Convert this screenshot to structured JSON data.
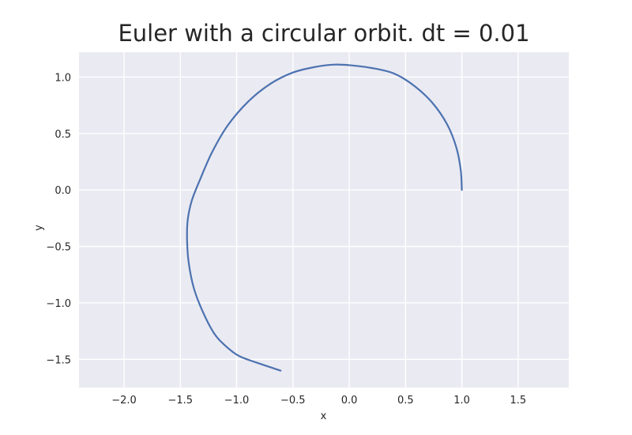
{
  "chart_data": {
    "type": "line",
    "title": "Euler with a circular orbit. dt = 0.01",
    "xlabel": "x",
    "ylabel": "y",
    "xlim": [
      -2.4,
      1.95
    ],
    "ylim": [
      -1.75,
      1.22
    ],
    "xticks": [
      -2.0,
      -1.5,
      -1.0,
      -0.5,
      0.0,
      0.5,
      1.0,
      1.5
    ],
    "xtick_labels": [
      "−2.0",
      "−1.5",
      "−1.0",
      "−0.5",
      "0.0",
      "0.5",
      "1.0",
      "1.5"
    ],
    "yticks": [
      -1.5,
      -1.0,
      -0.5,
      0.0,
      0.5,
      1.0
    ],
    "ytick_labels": [
      "−1.5",
      "−1.0",
      "−0.5",
      "0.0",
      "0.5",
      "1.0"
    ],
    "grid": true,
    "background_color": "#EAEAF2",
    "grid_color": "#FFFFFF",
    "series": [
      {
        "color": "#4C72B0",
        "x": [
          1.0,
          0.99,
          0.95,
          0.87,
          0.74,
          0.58,
          0.4,
          0.2,
          0.0,
          -0.13,
          -0.3,
          -0.5,
          -0.7,
          -0.9,
          -1.08,
          -1.22,
          -1.33,
          -1.4,
          -1.435,
          -1.44,
          -1.425,
          -1.38,
          -1.3,
          -1.2,
          -1.1,
          -0.98,
          -0.82,
          -0.61
        ],
        "y": [
          0.0,
          0.18,
          0.38,
          0.58,
          0.77,
          0.92,
          1.03,
          1.08,
          1.105,
          1.11,
          1.09,
          1.04,
          0.94,
          0.78,
          0.57,
          0.33,
          0.08,
          -0.1,
          -0.27,
          -0.45,
          -0.65,
          -0.87,
          -1.08,
          -1.27,
          -1.38,
          -1.47,
          -1.53,
          -1.6
        ]
      }
    ]
  }
}
